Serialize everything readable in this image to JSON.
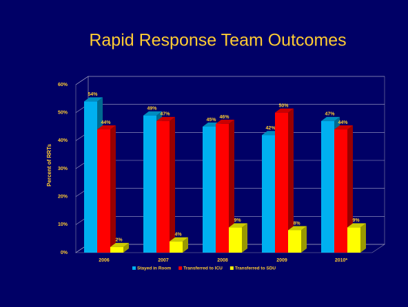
{
  "chart_data": {
    "type": "bar3d",
    "title": "Rapid Response Team Outcomes",
    "y_label": "Percent of RRTs",
    "categories": [
      "2006",
      "2007",
      "2008",
      "2009",
      "2010*"
    ],
    "series": [
      {
        "name": "Stayed in Room",
        "color": "#00b0f0",
        "values": [
          54,
          49,
          45,
          42,
          47
        ],
        "value_labels": [
          "54%",
          "49%",
          "45%",
          "42%",
          "47%"
        ]
      },
      {
        "name": "Transferred to ICU",
        "color": "#ff0000",
        "values": [
          44,
          47,
          46,
          50,
          44
        ],
        "value_labels": [
          "44%",
          "47%",
          "46%",
          "50%",
          "44%"
        ]
      },
      {
        "name": "Transferred to SDU",
        "color": "#ffff00",
        "values": [
          2,
          4,
          9,
          8,
          9
        ],
        "value_labels": [
          "2%",
          "4%",
          "9%",
          "8%",
          "9%"
        ]
      }
    ],
    "ylim": [
      0,
      60
    ],
    "yticks": [
      {
        "value": 0,
        "label": "0%"
      },
      {
        "value": 10,
        "label": "10%"
      },
      {
        "value": 20,
        "label": "20%"
      },
      {
        "value": 30,
        "label": "30%"
      },
      {
        "value": 40,
        "label": "40%"
      },
      {
        "value": 50,
        "label": "50%"
      },
      {
        "value": 60,
        "label": "60%"
      }
    ],
    "grid": true
  }
}
